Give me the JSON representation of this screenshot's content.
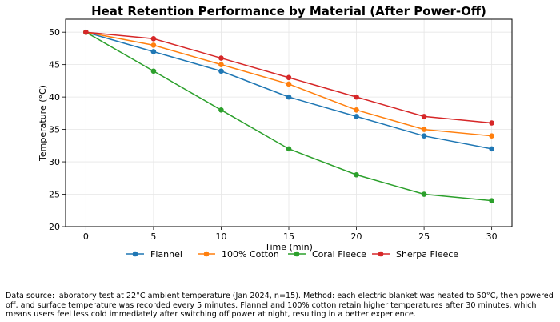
{
  "chart_data": {
    "type": "line",
    "title": "Heat Retention Performance by Material (After Power-Off)",
    "xlabel": "Time (min)",
    "ylabel": "Temperature (°C)",
    "x": [
      0,
      5,
      10,
      15,
      20,
      25,
      30
    ],
    "xlim": [
      -1.5,
      31.5
    ],
    "ylim": [
      20,
      52
    ],
    "xticks": [
      0,
      5,
      10,
      15,
      20,
      25,
      30
    ],
    "yticks": [
      20,
      25,
      30,
      35,
      40,
      45,
      50
    ],
    "grid": true,
    "legend_position": "bottom-center",
    "series": [
      {
        "name": "Flannel",
        "color": "#1f77b4",
        "values": [
          50,
          47,
          44,
          40,
          37,
          34,
          32
        ]
      },
      {
        "name": "100% Cotton",
        "color": "#ff7f0e",
        "values": [
          50,
          48,
          45,
          42,
          38,
          35,
          34
        ]
      },
      {
        "name": "Coral Fleece",
        "color": "#2ca02c",
        "values": [
          50,
          44,
          38,
          32,
          28,
          25,
          24
        ]
      },
      {
        "name": "Sherpa Fleece",
        "color": "#d62728",
        "values": [
          50,
          49,
          46,
          43,
          40,
          37,
          36
        ]
      }
    ]
  },
  "footnote": "Data source: laboratory test at 22°C ambient temperature (Jan 2024, n=15). Method: each electric blanket was heated to 50°C, then powered off, and surface temperature was recorded every 5 minutes. Flannel and 100% cotton retain higher temperatures after 30 minutes, which means users feel less cold immediately after switching off power at night, resulting in a better experience."
}
